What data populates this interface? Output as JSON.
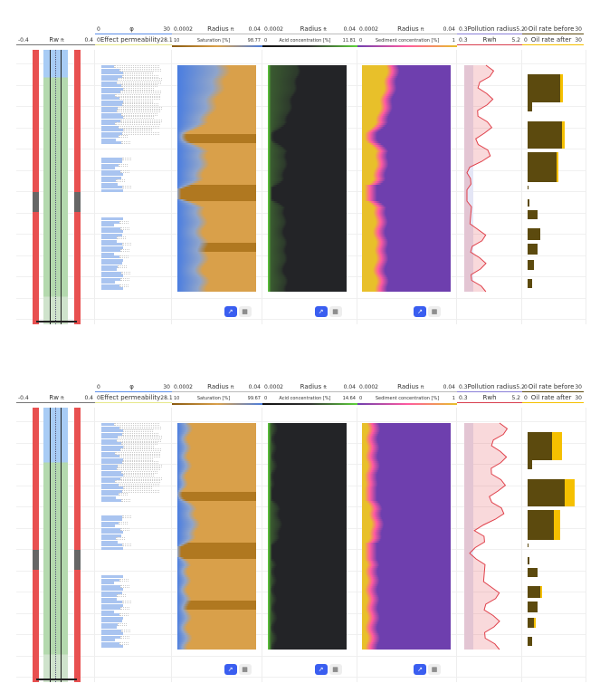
{
  "panels": [
    {
      "rw": {
        "min": "-0.4",
        "label": "Rw",
        "unit": "ft",
        "max": "0.4"
      },
      "phi": {
        "min": "0",
        "label": "φ",
        "max": "30"
      },
      "perm": {
        "min": "0",
        "label": "Effect permeability",
        "max": "28.1"
      },
      "sat": {
        "rmin": "0.0002",
        "rlabel": "Radius",
        "unit": "ft",
        "rmax": "0.04",
        "min": "10",
        "label": "Saturation [%]",
        "max": "98.77"
      },
      "acid": {
        "rmin": "0.0002",
        "rlabel": "Radius",
        "unit": "ft",
        "rmax": "0.04",
        "min": "0",
        "label": "Acid concentration [%]",
        "max": "11.81"
      },
      "sed": {
        "rmin": "0.0002",
        "rlabel": "Radius",
        "unit": "ft",
        "rmax": "0.04",
        "min": "0",
        "label": "Sediment concentration [%]",
        "max": "1"
      },
      "pol": {
        "min": "0.3",
        "label": "Pollution radius",
        "max": "5.2"
      },
      "rwh": {
        "min": "0.3",
        "label": "Rwh",
        "max": "5.2"
      },
      "oilb": {
        "min": "0",
        "label": "Oil rate before",
        "max": "30"
      },
      "oila": {
        "min": "0",
        "label": "Oil rate after",
        "max": "30"
      }
    },
    {
      "rw": {
        "min": "-0.4",
        "label": "Rw",
        "unit": "ft",
        "max": "0.4"
      },
      "phi": {
        "min": "0",
        "label": "φ",
        "max": "30"
      },
      "perm": {
        "min": "0",
        "label": "Effect permeability",
        "max": "28.1"
      },
      "sat": {
        "rmin": "0.0002",
        "rlabel": "Radius",
        "unit": "ft",
        "rmax": "0.04",
        "min": "10",
        "label": "Saturation [%]",
        "max": "99.67"
      },
      "acid": {
        "rmin": "0.0002",
        "rlabel": "Radius",
        "unit": "ft",
        "rmax": "0.04",
        "min": "0",
        "label": "Acid concentration [%]",
        "max": "14.64"
      },
      "sed": {
        "rmin": "0.0002",
        "rlabel": "Radius",
        "unit": "ft",
        "rmax": "0.04",
        "min": "0",
        "label": "Sediment concentration [%]",
        "max": "1"
      },
      "pol": {
        "min": "0.3",
        "label": "Pollution radius",
        "max": "5.2"
      },
      "rwh": {
        "min": "0.3",
        "label": "Rwh",
        "max": "5.2"
      },
      "oilb": {
        "min": "0",
        "label": "Oil rate before",
        "max": "30"
      },
      "oila": {
        "min": "0",
        "label": "Oil rate after",
        "max": "30"
      }
    }
  ],
  "colors": {
    "saturation_wet": "#4a7de0",
    "saturation_oil": "#d9a04a",
    "acid": "#5fd43c",
    "acid_bg": "#232427",
    "sediment_low": "#e8c02a",
    "sediment_mid": "#ff5aa0",
    "sediment_high": "#6e3fae",
    "pollution": "#e0404a",
    "oil_before": "#5c4a0e",
    "oil_after": "#f5c000",
    "rw_casing": "#e85050",
    "rw_water": "#a8ccf5",
    "rw_oil": "#b4d9ae"
  },
  "buttons": {
    "chart_icon": "chart-line-icon",
    "grid_icon": "grid-icon"
  }
}
